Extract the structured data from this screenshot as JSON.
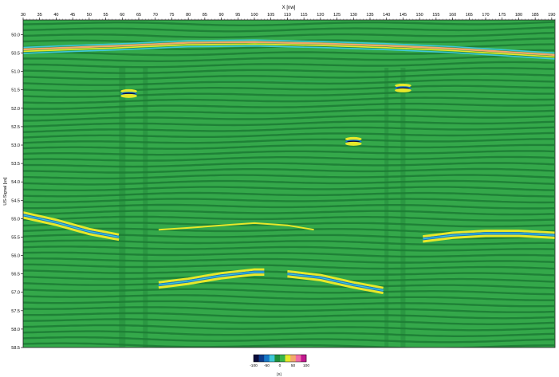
{
  "chart_data": {
    "type": "heatmap",
    "title": "",
    "xlabel": "X [nw]",
    "ylabel": "US-Signal [us]",
    "xlim": [
      30,
      191
    ],
    "ylim": [
      58.5,
      49.6
    ],
    "y_reversed": true,
    "x_ticks": [
      30,
      35,
      40,
      45,
      50,
      55,
      60,
      65,
      70,
      75,
      80,
      85,
      90,
      95,
      100,
      105,
      110,
      115,
      120,
      125,
      130,
      135,
      140,
      145,
      150,
      155,
      160,
      165,
      170,
      175,
      180,
      185,
      190
    ],
    "y_ticks": [
      "50.0",
      "50.5",
      "51.0",
      "51.5",
      "52.0",
      "52.5",
      "53.0",
      "53.5",
      "54.0",
      "54.5",
      "55.0",
      "55.5",
      "56.0",
      "56.5",
      "57.0",
      "57.5",
      "58.0",
      "58.5"
    ],
    "colorbar": {
      "label": "[S]",
      "range": [
        -100,
        100
      ],
      "tick_labels": [
        "-100",
        "-50",
        "0",
        "50",
        "100"
      ],
      "colors": [
        "#0b0b3a",
        "#0d3a8a",
        "#1677c7",
        "#3fc7d8",
        "#1f8f3a",
        "#39b54a",
        "#e7e82a",
        "#f2a86b",
        "#f06aa8",
        "#c2188f"
      ]
    },
    "background_color": "#34a84a",
    "reflector_features": [
      {
        "name": "surface",
        "x": [
          30,
          60,
          80,
          100,
          120,
          140,
          160,
          191
        ],
        "y": [
          50.4,
          50.3,
          50.22,
          50.2,
          50.24,
          50.3,
          50.38,
          50.55
        ]
      },
      {
        "name": "left dipping",
        "x": [
          30,
          40,
          50,
          59
        ],
        "y": [
          54.9,
          55.1,
          55.35,
          55.5
        ]
      },
      {
        "name": "central arc",
        "x": [
          71,
          80,
          90,
          100,
          110,
          118
        ],
        "y": [
          55.3,
          55.25,
          55.18,
          55.12,
          55.18,
          55.3
        ]
      },
      {
        "name": "left trough",
        "x": [
          71,
          80,
          90,
          100,
          103
        ],
        "y": [
          56.8,
          56.7,
          56.55,
          56.45,
          56.45
        ]
      },
      {
        "name": "right trough",
        "x": [
          110,
          120,
          130,
          139
        ],
        "y": [
          56.5,
          56.6,
          56.8,
          56.95
        ]
      },
      {
        "name": "right segment",
        "x": [
          151,
          160,
          170,
          180,
          191
        ],
        "y": [
          55.55,
          55.45,
          55.4,
          55.4,
          55.45
        ]
      },
      {
        "name": "anomaly 1",
        "x": [
          60,
          64
        ],
        "y": [
          51.6,
          51.6
        ]
      },
      {
        "name": "anomaly 2",
        "x": [
          128,
          132
        ],
        "y": [
          52.9,
          52.9
        ]
      },
      {
        "name": "anomaly 3",
        "x": [
          143,
          147
        ],
        "y": [
          51.45,
          51.45
        ]
      }
    ]
  }
}
